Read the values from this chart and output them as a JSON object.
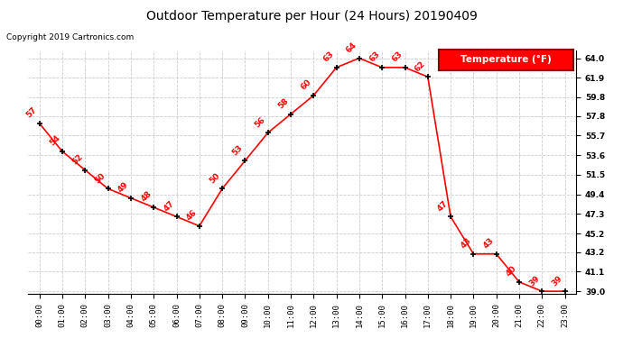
{
  "title": "Outdoor Temperature per Hour (24 Hours) 20190409",
  "copyright": "Copyright 2019 Cartronics.com",
  "legend_label": "Temperature (°F)",
  "hours": [
    0,
    1,
    2,
    3,
    4,
    5,
    6,
    7,
    8,
    9,
    10,
    11,
    12,
    13,
    14,
    15,
    16,
    17,
    18,
    19,
    20,
    21,
    22,
    23
  ],
  "temps": [
    57,
    54,
    52,
    50,
    49,
    48,
    47,
    46,
    50,
    53,
    56,
    58,
    60,
    63,
    64,
    63,
    63,
    62,
    47,
    43,
    43,
    40,
    39,
    39
  ],
  "ylim_min": 39.0,
  "ylim_max": 64.0,
  "yticks": [
    39.0,
    41.1,
    43.2,
    45.2,
    47.3,
    49.4,
    51.5,
    53.6,
    55.7,
    57.8,
    59.8,
    61.9,
    64.0
  ],
  "line_color": "red",
  "marker_color": "black",
  "label_color": "red",
  "title_color": "black",
  "copyright_color": "black",
  "legend_bg": "red",
  "legend_text_color": "white",
  "bg_color": "white",
  "grid_color": "#cccccc",
  "title_fontsize": 10,
  "copyright_fontsize": 6.5,
  "tick_fontsize": 6.5,
  "label_fontsize": 6.5,
  "legend_fontsize": 7.5
}
